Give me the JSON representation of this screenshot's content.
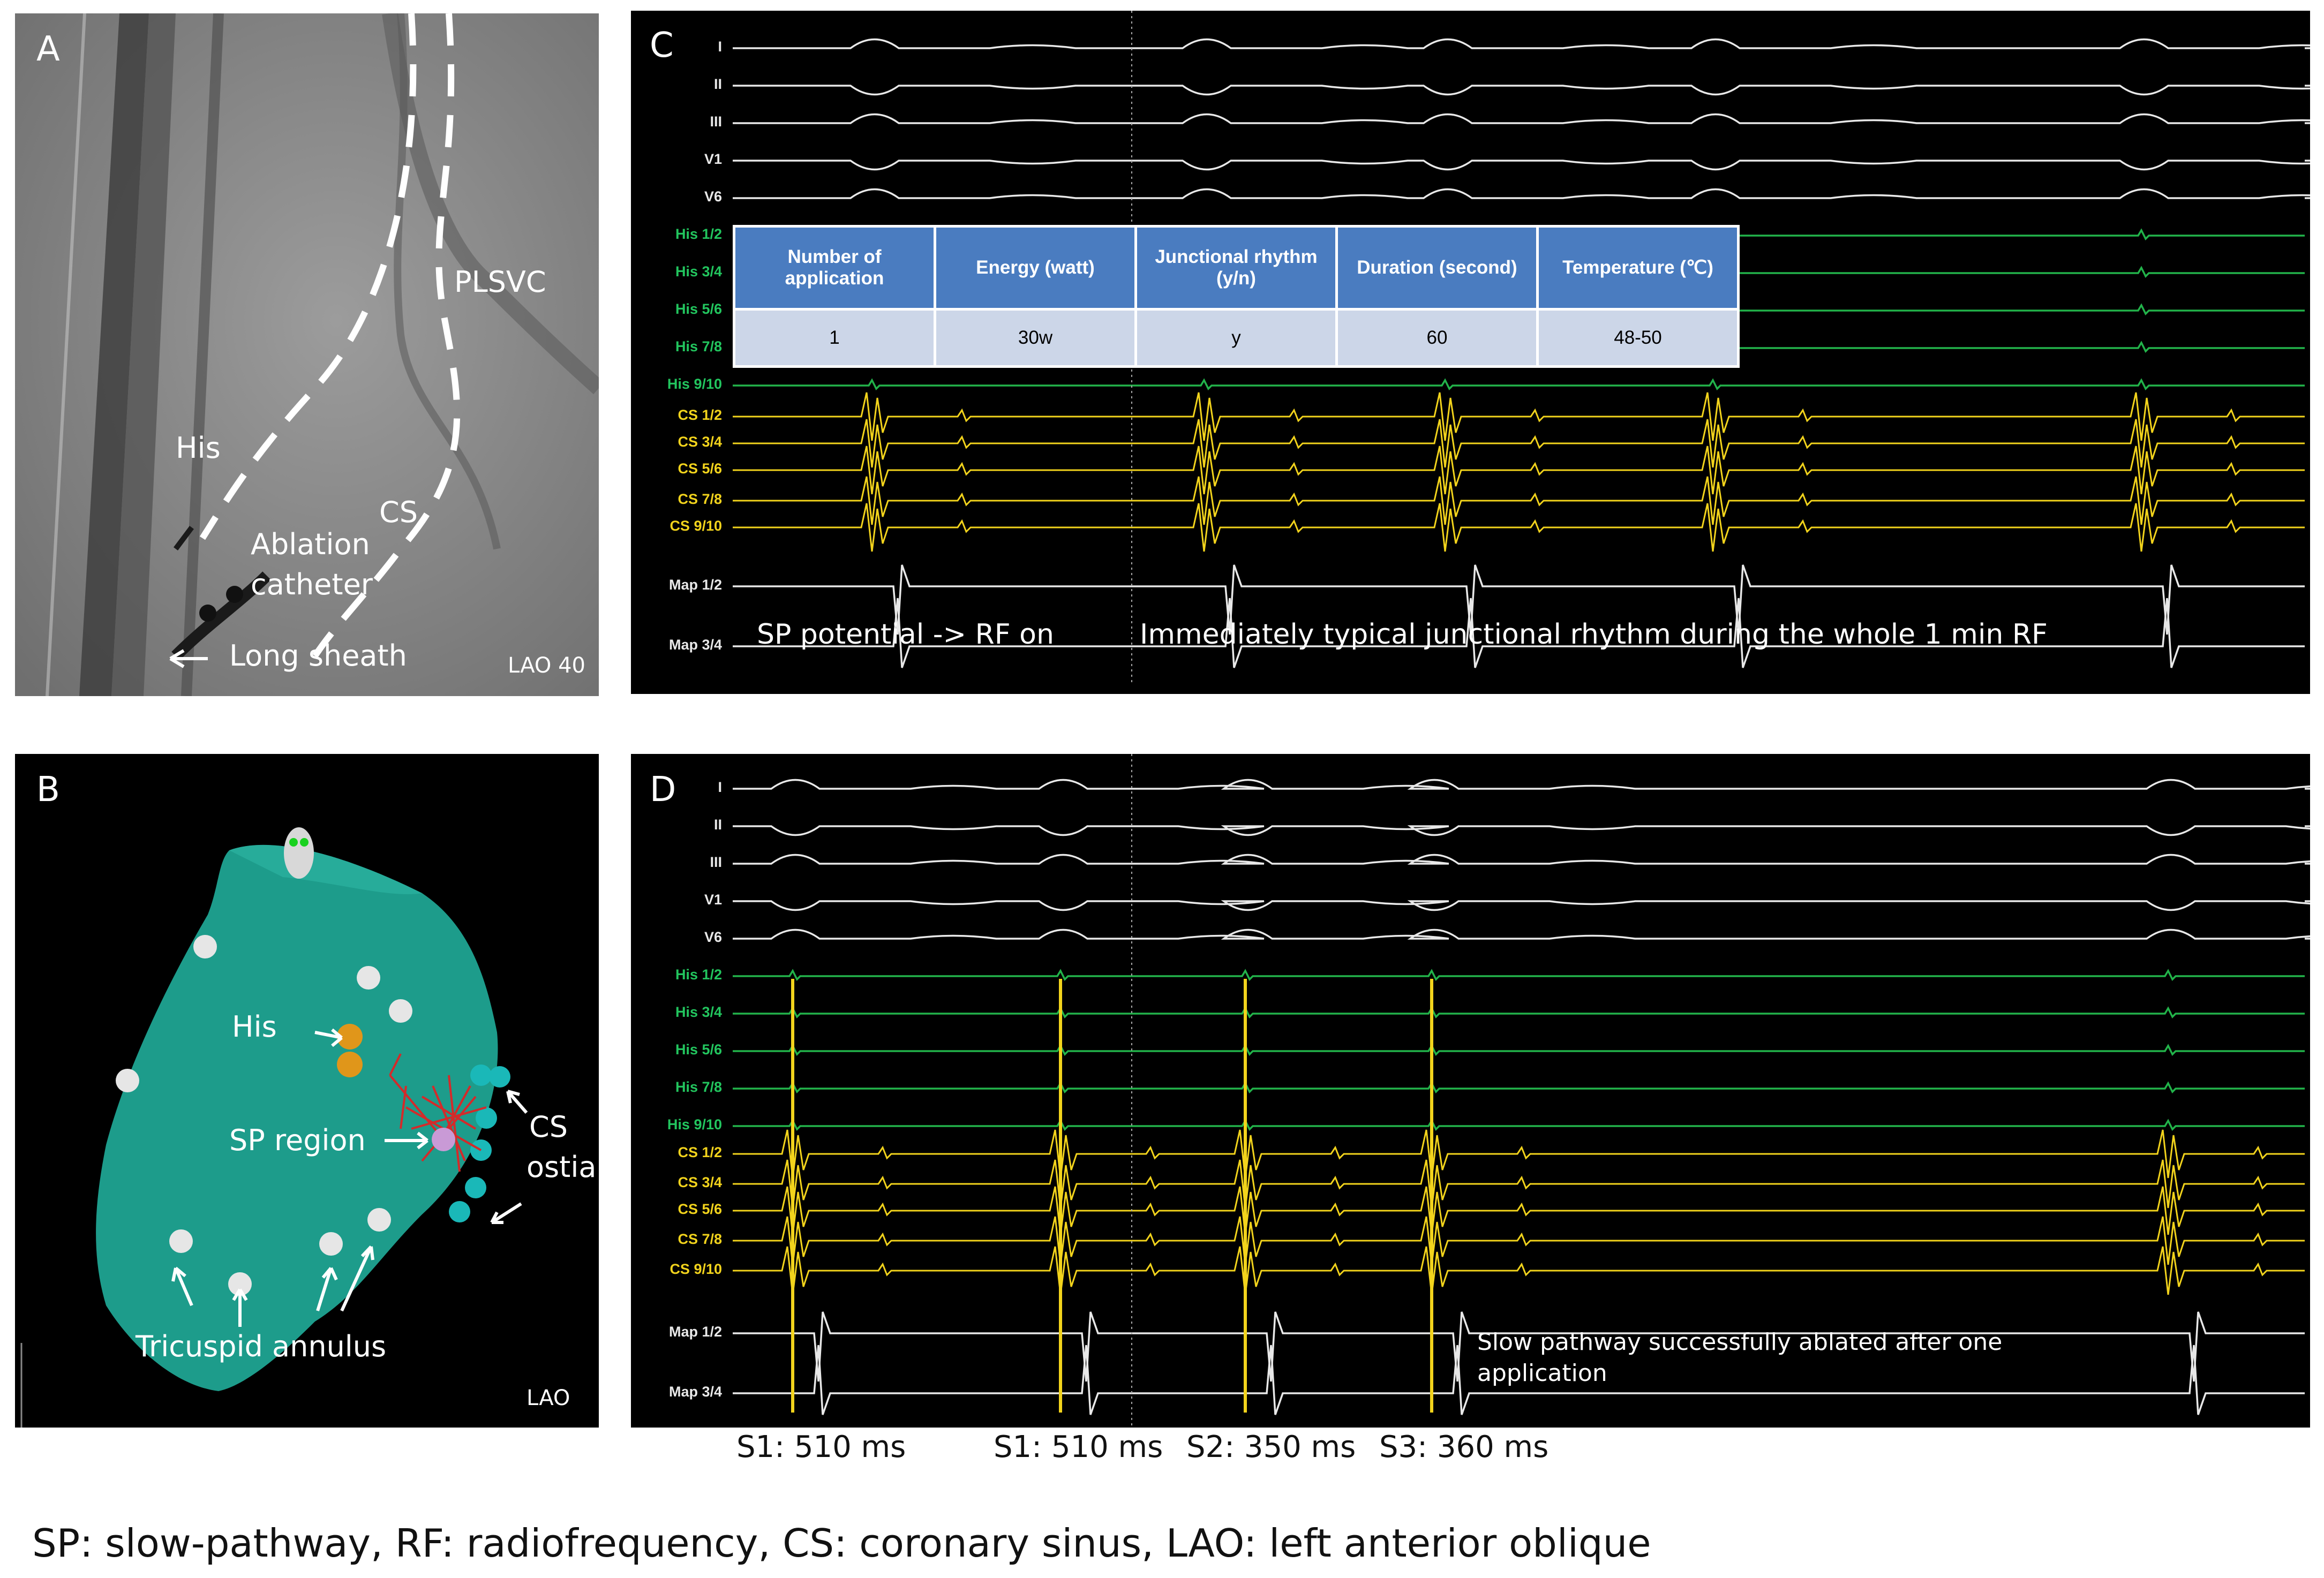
{
  "panel_a": {
    "label": "A",
    "annotations": {
      "plsvc": "PLSVC",
      "his": "His",
      "cs": "CS",
      "ablation_catheter_line1": "Ablation",
      "ablation_catheter_line2": "catheter",
      "long_sheath": "Long sheath",
      "view": "LAO 40"
    }
  },
  "panel_b": {
    "label": "B",
    "annotations": {
      "his": "His",
      "sp_region": "SP region",
      "cs_ostia_line1": "CS",
      "cs_ostia_line2": "ostia",
      "tricuspid_annulus": "Tricuspid annulus",
      "view": "LAO"
    },
    "colors": {
      "chamber": "#1d9c8b",
      "his_marker": "#e0961a",
      "annulus_marker": "#e6e6e6",
      "cs_marker": "#1ab8b8",
      "sp_marker": "#c99ad6"
    }
  },
  "panel_c": {
    "label": "C",
    "channels": [
      "I",
      "II",
      "III",
      "V1",
      "V6",
      "His 1/2",
      "His 3/4",
      "His 5/6",
      "His 7/8",
      "His 9/10",
      "CS 1/2",
      "CS 3/4",
      "CS 5/6",
      "CS 7/8",
      "CS 9/10",
      "Map 1/2",
      "Map 3/4"
    ],
    "annotation_left": "SP potential -> RF on",
    "annotation_right": "Immediately typical junctional rhythm during the whole 1 min RF",
    "table": {
      "headers": [
        "Number of application",
        "Energy (watt)",
        "Junctional rhythm (y/n)",
        "Duration (second)",
        "Temperature (℃)"
      ],
      "row": [
        "1",
        "30w",
        "y",
        "60",
        "48-50"
      ]
    }
  },
  "panel_d": {
    "label": "D",
    "channels": [
      "I",
      "II",
      "III",
      "V1",
      "V6",
      "His 1/2",
      "His 3/4",
      "His 5/6",
      "His 7/8",
      "His 9/10",
      "CS 1/2",
      "CS 3/4",
      "CS 5/6",
      "CS 7/8",
      "CS 9/10",
      "Map 1/2",
      "Map 3/4"
    ],
    "annotation": "Slow pathway successfully ablated after one application",
    "stimuli": [
      "S1: 510 ms",
      "S1: 510 ms",
      "S2: 350 ms",
      "S3: 360 ms"
    ]
  },
  "trace_colors": {
    "surface": "#e8e8e8",
    "his": "#22b34a",
    "cs": "#f2d31c",
    "map": "#e8e8e8"
  },
  "footnote": "SP: slow-pathway, RF: radiofrequency, CS: coronary sinus, LAO: left anterior oblique"
}
